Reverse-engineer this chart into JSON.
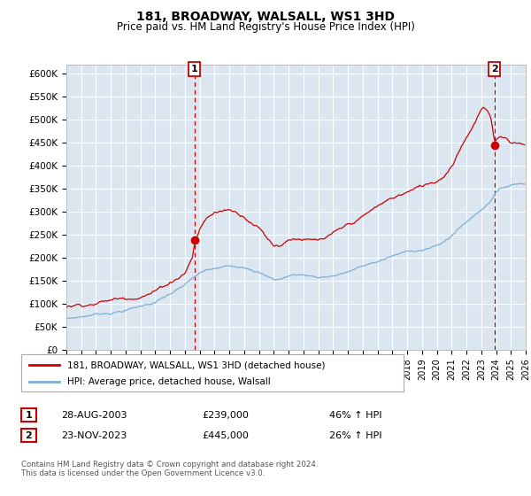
{
  "title": "181, BROADWAY, WALSALL, WS1 3HD",
  "subtitle": "Price paid vs. HM Land Registry's House Price Index (HPI)",
  "background_color": "#ffffff",
  "plot_bg_color": "#dce6f1",
  "grid_color": "#ffffff",
  "line1_color": "#cc0000",
  "line2_color": "#7bafd4",
  "dashed_color": "#cc0000",
  "marker_color": "#cc0000",
  "ylim": [
    0,
    620000
  ],
  "yticks": [
    0,
    50000,
    100000,
    150000,
    200000,
    250000,
    300000,
    350000,
    400000,
    450000,
    500000,
    550000,
    600000
  ],
  "ytick_labels": [
    "£0",
    "£50K",
    "£100K",
    "£150K",
    "£200K",
    "£250K",
    "£300K",
    "£350K",
    "£400K",
    "£450K",
    "£500K",
    "£550K",
    "£600K"
  ],
  "xlim_start": 1995.0,
  "xlim_end": 2026.0,
  "transaction1_x": 2003.65,
  "transaction1_y": 239000,
  "transaction2_x": 2023.9,
  "transaction2_y": 445000,
  "legend_line1": "181, BROADWAY, WALSALL, WS1 3HD (detached house)",
  "legend_line2": "HPI: Average price, detached house, Walsall",
  "annotation1_label": "1",
  "annotation1_date": "28-AUG-2003",
  "annotation1_price": "£239,000",
  "annotation1_hpi": "46% ↑ HPI",
  "annotation2_label": "2",
  "annotation2_date": "23-NOV-2023",
  "annotation2_price": "£445,000",
  "annotation2_hpi": "26% ↑ HPI",
  "footer": "Contains HM Land Registry data © Crown copyright and database right 2024.\nThis data is licensed under the Open Government Licence v3.0."
}
